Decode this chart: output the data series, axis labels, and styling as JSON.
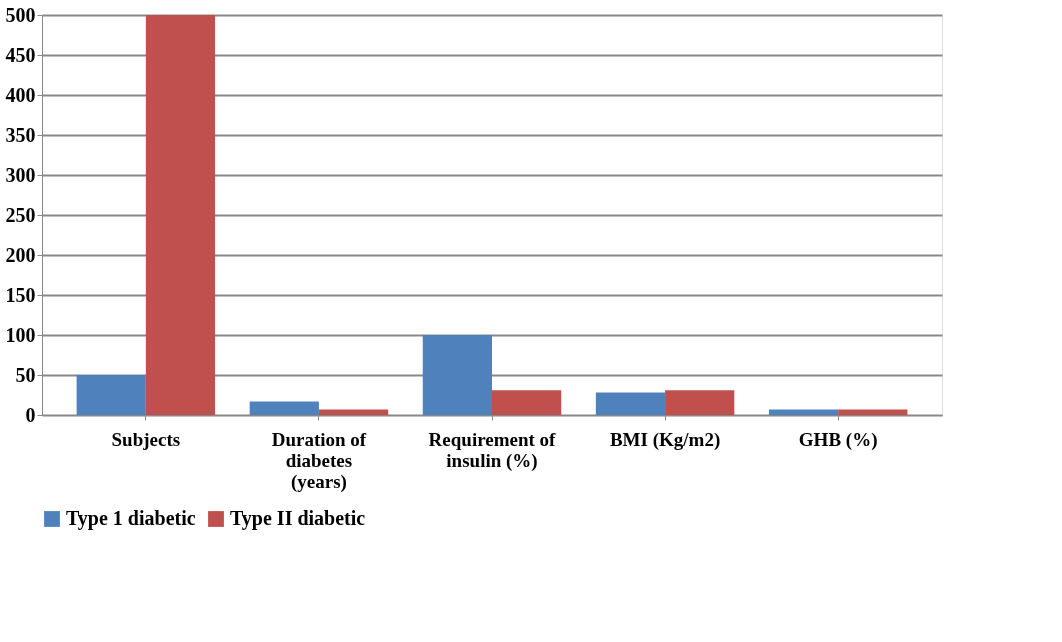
{
  "chart_data": {
    "type": "bar",
    "categories": [
      "Subjects",
      "Duration of diabetes (years)",
      "Requirement of insulin (%)",
      "BMI (Kg/m2)",
      "GHB (%)"
    ],
    "series": [
      {
        "name": "Type 1 diabetic",
        "color": "#4f81bd",
        "values": [
          50,
          17,
          100,
          28,
          7
        ]
      },
      {
        "name": "Type II diabetic",
        "color": "#c0504d",
        "values": [
          500,
          7,
          31,
          31,
          7
        ]
      }
    ],
    "ylim": [
      0,
      500
    ],
    "yticks": [
      0,
      50,
      100,
      150,
      200,
      250,
      300,
      350,
      400,
      450,
      500
    ],
    "grid": "y",
    "legend": "bottom"
  }
}
